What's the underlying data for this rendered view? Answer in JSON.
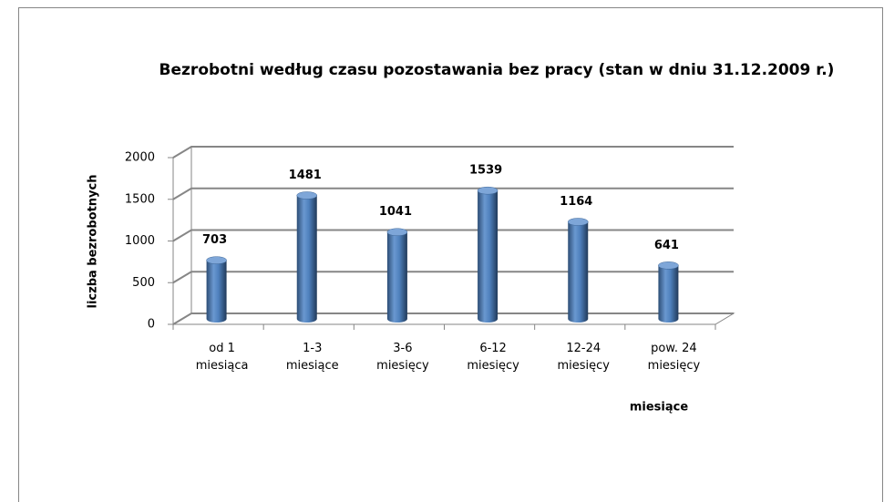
{
  "chart_data": {
    "type": "bar3d",
    "title": "Bezrobotni według czasu pozostawania bez pracy (stan w dniu 31.12.2009 r.)",
    "y_label": "liczba bezrobotnych",
    "x_label": "miesiące",
    "categories": [
      "od 1\nmiesiąca",
      "1-3\nmiesiące",
      "3-6\nmiesięcy",
      "6-12\nmiesięcy",
      "12-24\nmiesięcy",
      "pow. 24\nmiesięcy"
    ],
    "values": [
      703,
      1481,
      1041,
      1539,
      1164,
      641
    ],
    "color": "#4f81bd",
    "ylim": [
      0,
      2000
    ],
    "yticks": [
      0,
      500,
      1000,
      1500,
      2000
    ],
    "grid": true
  }
}
